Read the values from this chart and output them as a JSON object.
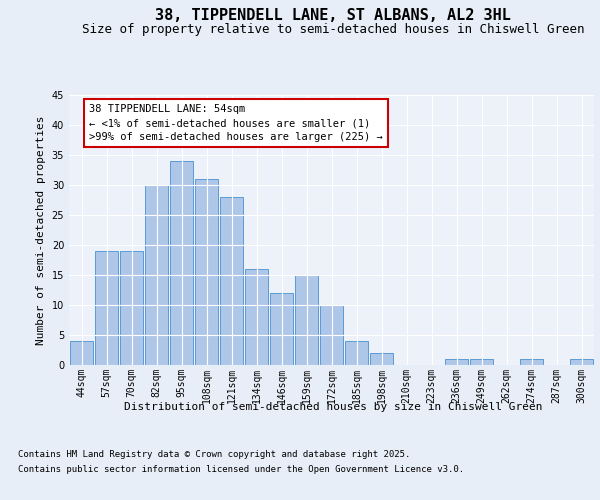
{
  "title": "38, TIPPENDELL LANE, ST ALBANS, AL2 3HL",
  "subtitle": "Size of property relative to semi-detached houses in Chiswell Green",
  "xlabel": "Distribution of semi-detached houses by size in Chiswell Green",
  "ylabel": "Number of semi-detached properties",
  "footer_line1": "Contains HM Land Registry data © Crown copyright and database right 2025.",
  "footer_line2": "Contains public sector information licensed under the Open Government Licence v3.0.",
  "annotation_title": "38 TIPPENDELL LANE: 54sqm",
  "annotation_line1": "← <1% of semi-detached houses are smaller (1)",
  "annotation_line2": ">99% of semi-detached houses are larger (225) →",
  "bar_labels": [
    "44sqm",
    "57sqm",
    "70sqm",
    "82sqm",
    "95sqm",
    "108sqm",
    "121sqm",
    "134sqm",
    "146sqm",
    "159sqm",
    "172sqm",
    "185sqm",
    "198sqm",
    "210sqm",
    "223sqm",
    "236sqm",
    "249sqm",
    "262sqm",
    "274sqm",
    "287sqm",
    "300sqm"
  ],
  "bar_values": [
    4,
    19,
    19,
    30,
    34,
    31,
    28,
    16,
    12,
    15,
    10,
    4,
    2,
    0,
    0,
    1,
    1,
    0,
    1,
    0,
    1
  ],
  "bar_color": "#aec6e8",
  "bar_edge_color": "#5b9bd5",
  "ylim": [
    0,
    45
  ],
  "yticks": [
    0,
    5,
    10,
    15,
    20,
    25,
    30,
    35,
    40,
    45
  ],
  "bg_color": "#e8eef7",
  "plot_bg_color": "#edf2fa",
  "grid_color": "#ffffff",
  "annotation_box_color": "#ffffff",
  "annotation_box_edge": "#cc0000",
  "title_fontsize": 11,
  "subtitle_fontsize": 9,
  "axis_label_fontsize": 8,
  "tick_fontsize": 7,
  "annotation_fontsize": 7.5,
  "footer_fontsize": 6.5
}
